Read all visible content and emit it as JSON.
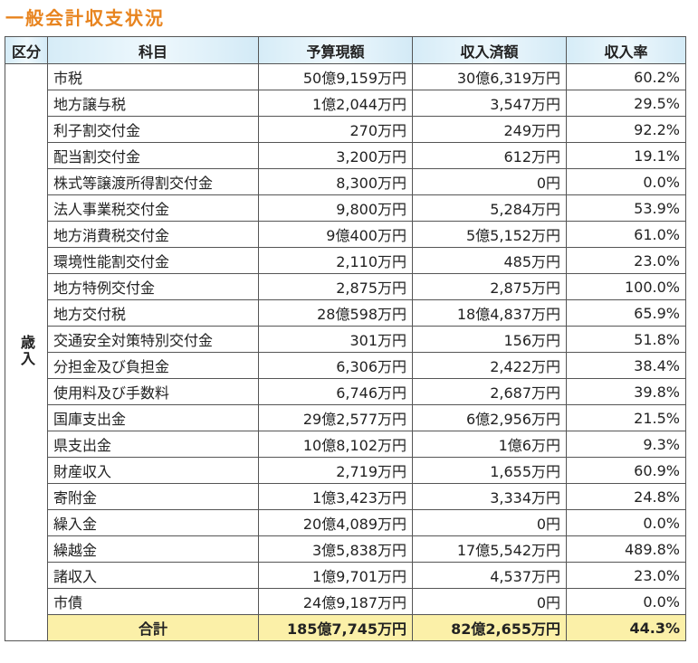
{
  "title": "一般会計収支状況",
  "table": {
    "header": [
      "区分",
      "科目",
      "予算現額",
      "収入済額",
      "収入率"
    ],
    "category": "歳入",
    "rows": [
      [
        "市税",
        "50億9,159万円",
        "30億6,319万円",
        "60.2%"
      ],
      [
        "地方譲与税",
        "1億2,044万円",
        "3,547万円",
        "29.5%"
      ],
      [
        "利子割交付金",
        "270万円",
        "249万円",
        "92.2%"
      ],
      [
        "配当割交付金",
        "3,200万円",
        "612万円",
        "19.1%"
      ],
      [
        "株式等譲渡所得割交付金",
        "8,300万円",
        "0円",
        "0.0%"
      ],
      [
        "法人事業税交付金",
        "9,800万円",
        "5,284万円",
        "53.9%"
      ],
      [
        "地方消費税交付金",
        "9億400万円",
        "5億5,152万円",
        "61.0%"
      ],
      [
        "環境性能割交付金",
        "2,110万円",
        "485万円",
        "23.0%"
      ],
      [
        "地方特例交付金",
        "2,875万円",
        "2,875万円",
        "100.0%"
      ],
      [
        "地方交付税",
        "28億598万円",
        "18億4,837万円",
        "65.9%"
      ],
      [
        "交通安全対策特別交付金",
        "301万円",
        "156万円",
        "51.8%"
      ],
      [
        "分担金及び負担金",
        "6,306万円",
        "2,422万円",
        "38.4%"
      ],
      [
        "使用料及び手数料",
        "6,746万円",
        "2,687万円",
        "39.8%"
      ],
      [
        "国庫支出金",
        "29億2,577万円",
        "6億2,956万円",
        "21.5%"
      ],
      [
        "県支出金",
        "10億8,102万円",
        "1億6万円",
        "9.3%"
      ],
      [
        "財産収入",
        "2,719万円",
        "1,655万円",
        "60.9%"
      ],
      [
        "寄附金",
        "1億3,423万円",
        "3,334万円",
        "24.8%"
      ],
      [
        "繰入金",
        "20億4,089万円",
        "0円",
        "0.0%"
      ],
      [
        "繰越金",
        "3億5,838万円",
        "17億5,542万円",
        "489.8%"
      ],
      [
        "諸収入",
        "1億9,701万円",
        "4,537万円",
        "23.0%"
      ],
      [
        "市債",
        "24億9,187万円",
        "0円",
        "0.0%"
      ]
    ],
    "total": [
      "合計",
      "185億7,745万円",
      "82億2,655万円",
      "44.3%"
    ]
  }
}
